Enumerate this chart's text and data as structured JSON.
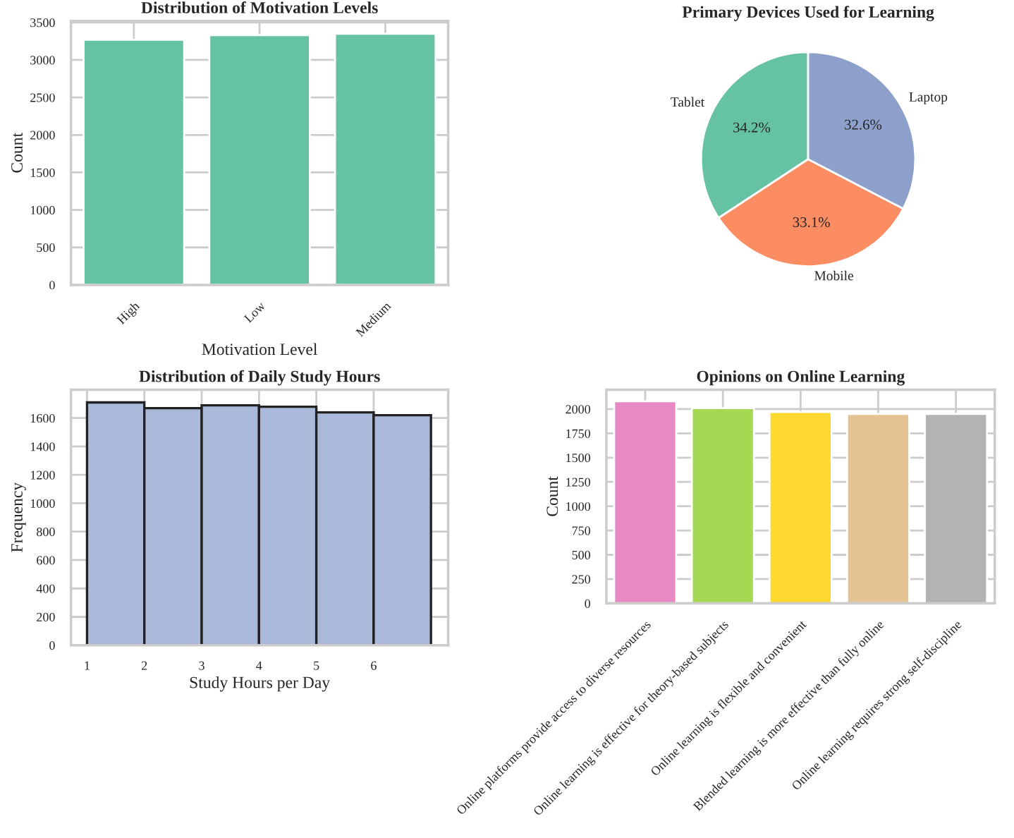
{
  "chart_data": [
    {
      "type": "bar",
      "title": "Distribution of Motivation Levels",
      "xlabel": "Motivation Level",
      "ylabel": "Count",
      "categories": [
        "High",
        "Low",
        "Medium"
      ],
      "values": [
        3270,
        3330,
        3350
      ],
      "color": "#66c2a5",
      "ylim": [
        0,
        3520
      ],
      "yticks": [
        0,
        500,
        1000,
        1500,
        2000,
        2500,
        3000,
        3500
      ],
      "grid": true
    },
    {
      "type": "pie",
      "title": "Primary Devices Used for Learning",
      "categories": [
        "Tablet",
        "Mobile",
        "Laptop"
      ],
      "values": [
        34.2,
        33.1,
        32.6
      ],
      "colors": [
        "#66c2a5",
        "#fc8d62",
        "#8da0cb"
      ],
      "value_labels": [
        "34.2%",
        "33.1%",
        "32.6%"
      ]
    },
    {
      "type": "histogram",
      "title": "Distribution of Daily Study Hours",
      "xlabel": "Study Hours per Day",
      "ylabel": "Frequency",
      "bins": [
        1,
        2,
        3,
        4,
        5,
        6,
        7
      ],
      "values": [
        1710,
        1670,
        1690,
        1680,
        1640,
        1620
      ],
      "color": "#aab8da",
      "xlim": [
        0.72,
        7.3
      ],
      "xticks": [
        1,
        2,
        3,
        4,
        5,
        6
      ],
      "ylim": [
        0,
        1800
      ],
      "yticks": [
        0,
        200,
        400,
        600,
        800,
        1000,
        1200,
        1400,
        1600
      ],
      "grid": true
    },
    {
      "type": "bar",
      "title": "Opinions on Online Learning",
      "ylabel": "Count",
      "categories": [
        "Online platforms provide access to diverse resources",
        "Online learning is effective for theory-based subjects",
        "Online learning is flexible and convenient",
        "Blended learning is more effective than fully online",
        "Online learning requires strong self-discipline"
      ],
      "values": [
        2080,
        2010,
        1970,
        1950,
        1950
      ],
      "colors": [
        "#e78ac3",
        "#a6d854",
        "#ffd92f",
        "#e5c494",
        "#b3b3b3"
      ],
      "ylim": [
        0,
        2200
      ],
      "yticks": [
        0,
        250,
        500,
        750,
        1000,
        1250,
        1500,
        1750,
        2000
      ],
      "grid": true
    }
  ]
}
